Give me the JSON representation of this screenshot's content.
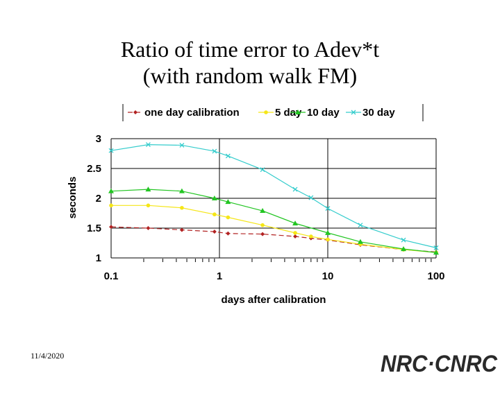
{
  "title": {
    "line1": "Ratio of time error to Adev*t",
    "line2": "(with random walk FM)"
  },
  "footer": {
    "date": "11/4/2020",
    "logo_text": "NRC·CNRC"
  },
  "chart_data": {
    "type": "line",
    "title": "Ratio of time error to Adev*t (with random walk FM)",
    "xlabel": "days after calibration",
    "ylabel": "seconds",
    "xscale": "log",
    "xlim": [
      0.1,
      100
    ],
    "ylim": [
      1,
      3
    ],
    "x_ticks": [
      "0.1",
      "1",
      "10",
      "100"
    ],
    "y_ticks": [
      "1",
      "1.5",
      "2",
      "2.5",
      "3"
    ],
    "grid": true,
    "legend_position": "top",
    "series": [
      {
        "name": "one day calibration",
        "color": "#b22222",
        "marker": "diamond",
        "dash": true,
        "x": [
          0.1,
          0.22,
          0.45,
          0.9,
          1.2,
          2.5,
          5,
          7,
          10,
          20,
          50,
          100
        ],
        "y": [
          1.52,
          1.5,
          1.47,
          1.44,
          1.41,
          1.4,
          1.36,
          1.33,
          1.3,
          1.22,
          1.14,
          1.1
        ]
      },
      {
        "name": "5 day",
        "color": "#f5e617",
        "marker": "circle",
        "dash": false,
        "x": [
          0.1,
          0.22,
          0.45,
          0.9,
          1.2,
          2.5,
          5,
          7,
          10,
          20,
          50,
          100
        ],
        "y": [
          1.88,
          1.88,
          1.84,
          1.73,
          1.68,
          1.55,
          1.42,
          1.36,
          1.31,
          1.23,
          1.14,
          1.09
        ]
      },
      {
        "name": "10 day",
        "color": "#22c522",
        "marker": "triangle",
        "dash": false,
        "x": [
          0.1,
          0.22,
          0.45,
          0.9,
          1.2,
          2.5,
          5,
          10,
          20,
          50,
          100
        ],
        "y": [
          2.12,
          2.15,
          2.12,
          2.0,
          1.94,
          1.79,
          1.58,
          1.42,
          1.27,
          1.15,
          1.09
        ]
      },
      {
        "name": "30 day",
        "color": "#33cccc",
        "marker": "x",
        "dash": false,
        "x": [
          0.1,
          0.22,
          0.45,
          0.9,
          1.2,
          2.5,
          5,
          7,
          10,
          20,
          50,
          100
        ],
        "y": [
          2.8,
          2.9,
          2.89,
          2.79,
          2.71,
          2.48,
          2.15,
          2.01,
          1.83,
          1.55,
          1.3,
          1.17
        ]
      }
    ]
  }
}
